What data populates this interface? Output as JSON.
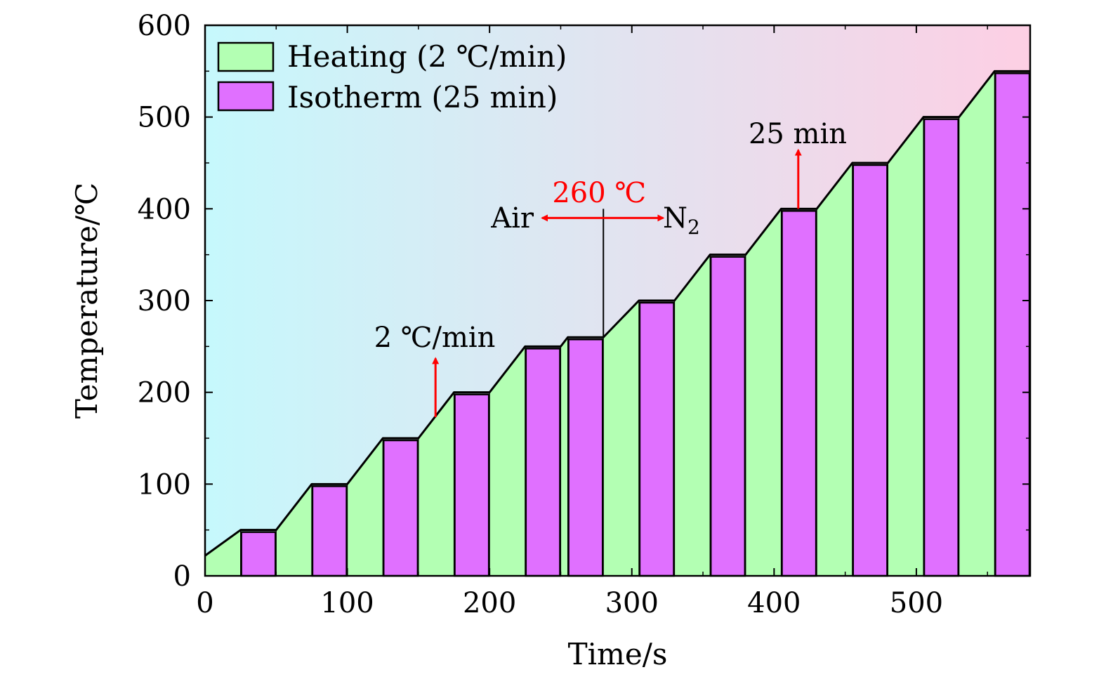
{
  "chart_data": {
    "type": "area",
    "xlabel": "Time/s",
    "ylabel": "Temperature/℃",
    "xlim": [
      0,
      580
    ],
    "ylim": [
      0,
      600
    ],
    "xticks": [
      0,
      100,
      200,
      300,
      400,
      500
    ],
    "yticks": [
      0,
      100,
      200,
      300,
      400,
      500,
      600
    ],
    "legend_position": "top-left",
    "series": [
      {
        "name": "Heating (2 ℃/min)",
        "color": "#b3ffb3"
      },
      {
        "name": "Isotherm (25 min)",
        "color": "#e070ff"
      }
    ],
    "profile": {
      "x": [
        0,
        25,
        50,
        75,
        100,
        125,
        150,
        175,
        200,
        225,
        250,
        255,
        280,
        305,
        330,
        355,
        380,
        405,
        430,
        455,
        480,
        505,
        530,
        555,
        580
      ],
      "y": [
        22,
        50,
        50,
        100,
        100,
        150,
        150,
        200,
        200,
        250,
        250,
        260,
        260,
        300,
        300,
        350,
        350,
        400,
        400,
        450,
        450,
        500,
        500,
        550,
        550
      ]
    },
    "isotherm_segments": [
      {
        "x0": 25,
        "x1": 50,
        "temp": 50
      },
      {
        "x0": 75,
        "x1": 100,
        "temp": 100
      },
      {
        "x0": 125,
        "x1": 150,
        "temp": 150
      },
      {
        "x0": 175,
        "x1": 200,
        "temp": 200
      },
      {
        "x0": 225,
        "x1": 250,
        "temp": 250
      },
      {
        "x0": 255,
        "x1": 280,
        "temp": 260
      },
      {
        "x0": 305,
        "x1": 330,
        "temp": 300
      },
      {
        "x0": 355,
        "x1": 380,
        "temp": 350
      },
      {
        "x0": 405,
        "x1": 430,
        "temp": 400
      },
      {
        "x0": 455,
        "x1": 480,
        "temp": 450
      },
      {
        "x0": 505,
        "x1": 530,
        "temp": 500
      },
      {
        "x0": 555,
        "x1": 580,
        "temp": 550
      }
    ],
    "background_gradient": [
      "#c6f8fc",
      "#fdcfe4"
    ],
    "annotations": {
      "heating_rate": {
        "text": "2 ℃/min",
        "x": 162,
        "y_from": 173,
        "y_to": 237
      },
      "isotherm_time": {
        "text": "25 min",
        "x": 417,
        "y_from": 400,
        "y_to": 464
      },
      "switch": {
        "temp_label": "260 ℃",
        "x": 280,
        "y_line_top": 400,
        "left_label": "Air",
        "right_label": "N",
        "right_label_sub": "2",
        "arrow_y": 390,
        "arrow_left_to": 237,
        "arrow_right_to": 322
      }
    },
    "annotation_color": "#ff0000"
  }
}
